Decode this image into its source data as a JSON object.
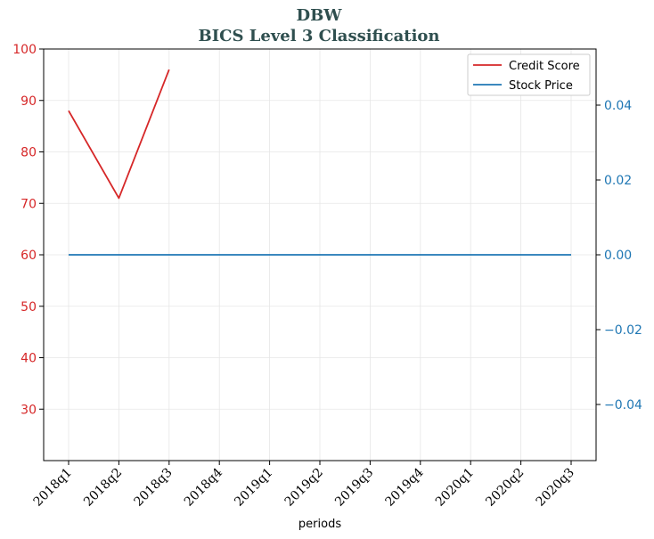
{
  "chart_data": {
    "type": "line",
    "title": "DBW",
    "subtitle": "BICS Level 3 Classification",
    "xlabel": "periods",
    "categories": [
      "2018q1",
      "2018q2",
      "2018q3",
      "2018q4",
      "2019q1",
      "2019q2",
      "2019q3",
      "2019q4",
      "2020q1",
      "2020q2",
      "2020q3"
    ],
    "y_left": {
      "ylim": [
        20,
        100
      ],
      "ticks": [
        "30",
        "40",
        "50",
        "60",
        "70",
        "80",
        "90",
        "100"
      ],
      "tick_values": [
        30,
        40,
        50,
        60,
        70,
        80,
        90,
        100
      ],
      "color": "#d62728"
    },
    "y_right": {
      "ylim": [
        -0.055,
        0.055
      ],
      "ticks": [
        "−0.04",
        "−0.02",
        "0.00",
        "0.02",
        "0.04"
      ],
      "tick_values": [
        -0.04,
        -0.02,
        0,
        0.02,
        0.04
      ],
      "color": "#1f77b4"
    },
    "series": [
      {
        "name": "Credit Score",
        "axis": "left",
        "color": "#d62728",
        "values": [
          88,
          71,
          96,
          null,
          null,
          null,
          null,
          null,
          null,
          null,
          null
        ]
      },
      {
        "name": "Stock Price",
        "axis": "right",
        "color": "#1f77b4",
        "values": [
          0,
          0,
          0,
          0,
          0,
          0,
          0,
          0,
          0,
          0,
          0
        ]
      }
    ],
    "grid": true,
    "legend": "top-right"
  }
}
